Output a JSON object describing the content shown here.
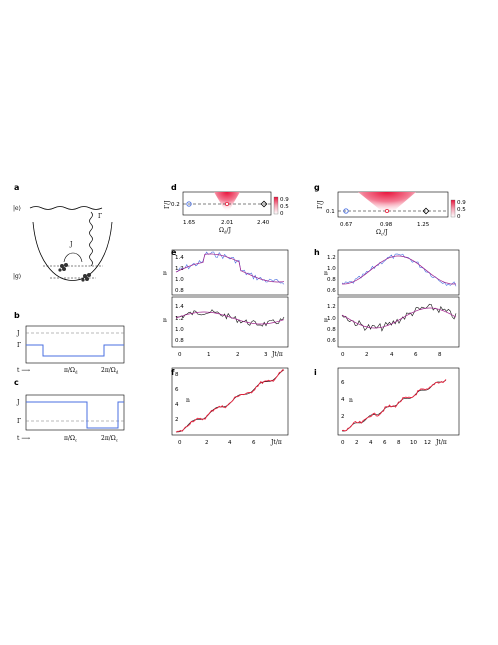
{
  "panel_labels": {
    "a": "a",
    "b": "b",
    "c": "c",
    "d": "d",
    "e": "e",
    "f": "f",
    "g": "g",
    "h": "h",
    "i": "i"
  },
  "schematic_a": {
    "excited": "|e⟩",
    "ground": "|g⟩",
    "coupling": "J",
    "decay": "Γ"
  },
  "schematic_b": {
    "ylabel_top": "J",
    "ylabel_bot": "Γ",
    "time_arrow": "t ⟶",
    "tick1": "π/Ω",
    "tick1_sub": "d",
    "tick2": "2π/Ω",
    "tick2_sub": "d"
  },
  "schematic_c": {
    "ylabel_top": "J",
    "ylabel_bot": "Γ",
    "time_arrow": "t ⟶",
    "tick1": "π/Ω",
    "tick1_sub": "c",
    "tick2": "2π/Ω",
    "tick2_sub": "c"
  },
  "colorbar": {
    "max": "0.9",
    "mid": "0.5",
    "min": "0"
  },
  "panel_d": {
    "ylabel": "Γ/J",
    "ytick": "0.2",
    "xlabel_main": "Ω",
    "xlabel_sub": "d",
    "xlabel_tail": "/J",
    "xticks": [
      "1.65",
      "2.01",
      "2.40"
    ]
  },
  "panel_g": {
    "ylabel": "Γ/J",
    "ytick": "0.1",
    "xlabel_main": "Ω",
    "xlabel_sub": "c",
    "xlabel_tail": "/J",
    "xticks": [
      "0.67",
      "0.98",
      "1.25"
    ]
  },
  "panel_e": {
    "ylabel": "n",
    "yticks_top": [
      "1.4",
      "1.2",
      "1.0",
      "0.8"
    ],
    "yticks_bot": [
      "1.4",
      "1.2",
      "1.0",
      "0.8"
    ],
    "xticks": [
      "0",
      "1",
      "2",
      "3"
    ],
    "xlabel": "Jt/π"
  },
  "panel_h": {
    "ylabel": "n",
    "yticks_top": [
      "1.2",
      "1.0",
      "0.8",
      "0.6"
    ],
    "yticks_bot": [
      "1.2",
      "1.0",
      "0.8",
      "0.6"
    ],
    "xticks": [
      "0",
      "2",
      "4",
      "6",
      "8"
    ],
    "xlabel": "Jt/π"
  },
  "panel_f": {
    "ylabel": "n",
    "yticks": [
      "8",
      "6",
      "4",
      "2"
    ],
    "xticks": [
      "0",
      "2",
      "4",
      "6"
    ],
    "xlabel": "Jt/π"
  },
  "panel_i": {
    "ylabel": "n",
    "yticks": [
      "6",
      "4",
      "2"
    ],
    "xticks": [
      "0",
      "2",
      "4",
      "6",
      "8",
      "10",
      "12"
    ],
    "xlabel": "Jt/π"
  },
  "colors": {
    "blue": "#4a6fe0",
    "black": "#111111",
    "magenta": "#a0208c",
    "red": "#e8203c",
    "pink": "#f2a6b6"
  }
}
